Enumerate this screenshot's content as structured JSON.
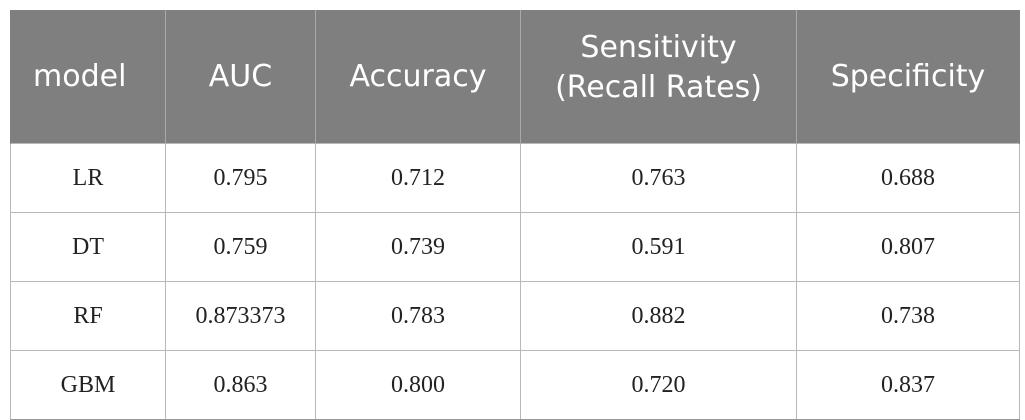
{
  "table": {
    "headers": [
      {
        "id": "model",
        "lines": [
          "model"
        ]
      },
      {
        "id": "auc",
        "lines": [
          "AUC"
        ]
      },
      {
        "id": "accuracy",
        "lines": [
          "Accuracy"
        ]
      },
      {
        "id": "sensitivity",
        "lines": [
          "Sensitivity",
          "(Recall Rates)"
        ]
      },
      {
        "id": "specificity",
        "lines": [
          "Specificity"
        ]
      }
    ],
    "rows": [
      {
        "model": "LR",
        "auc": "0.795",
        "accuracy": "0.712",
        "sensitivity": "0.763",
        "specificity": "0.688"
      },
      {
        "model": "DT",
        "auc": "0.759",
        "accuracy": "0.739",
        "sensitivity": "0.591",
        "specificity": "0.807"
      },
      {
        "model": "RF",
        "auc": "0.873373",
        "accuracy": "0.783",
        "sensitivity": "0.882",
        "specificity": "0.738"
      },
      {
        "model": "GBM",
        "auc": "0.863",
        "accuracy": "0.800",
        "sensitivity": "0.720",
        "specificity": "0.837"
      }
    ]
  },
  "colors": {
    "header_bg": "#7f7f7f",
    "header_text": "#ffffff",
    "grid_line": "#b8b8b8",
    "cell_text": "#222222"
  }
}
